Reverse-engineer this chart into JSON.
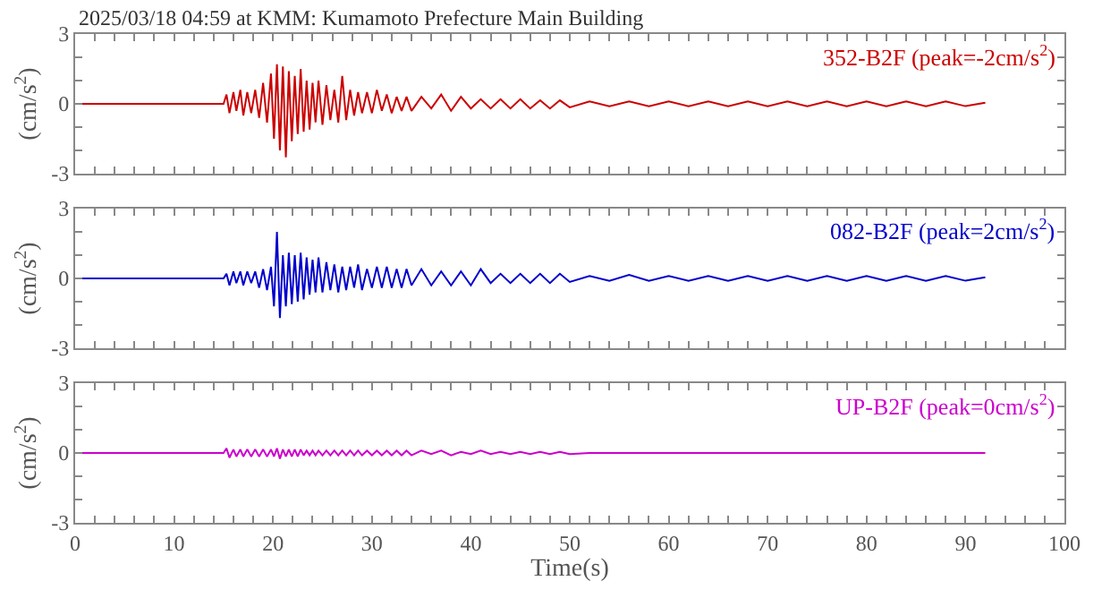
{
  "chart_data": [
    {
      "type": "line",
      "title": "2025/03/18 04:59 at KMM: Kumamoto Prefecture Main Building",
      "ylabel": "(cm/s$^{2}$)",
      "annotations": [
        "352-B2F (peak=-2cm/s$^{2}$)"
      ],
      "tick_labels": "y",
      "x": [
        0,
        15,
        15.3,
        15.6,
        16,
        16.3,
        16.7,
        17,
        17.4,
        17.8,
        18.2,
        18.6,
        19,
        19.4,
        19.8,
        20.1,
        20.4,
        20.7,
        21,
        21.3,
        21.6,
        21.9,
        22.2,
        22.5,
        22.8,
        23.1,
        23.4,
        23.7,
        24,
        24.3,
        24.6,
        25,
        25.4,
        25.8,
        26.2,
        26.6,
        27,
        27.4,
        27.8,
        28.2,
        28.6,
        29,
        29.5,
        30,
        30.5,
        31,
        31.5,
        32,
        32.5,
        33,
        33.5,
        34,
        35,
        36,
        37,
        38,
        39,
        40,
        41,
        42,
        43,
        44,
        45,
        46,
        47,
        48,
        49,
        50,
        52,
        54,
        56,
        58,
        60,
        62,
        64,
        66,
        68,
        70,
        72,
        74,
        76,
        78,
        80,
        82,
        84,
        86,
        88,
        90,
        92
      ],
      "series": [
        {
          "color": "#cc0000",
          "values": [
            0,
            0,
            0.4,
            -0.4,
            0.5,
            -0.3,
            0.6,
            -0.5,
            0.5,
            -0.4,
            0.6,
            -0.6,
            0.9,
            -0.8,
            1.3,
            -1.5,
            1.7,
            -2.0,
            1.6,
            -2.3,
            1.4,
            -1.6,
            1.2,
            -1.3,
            1.5,
            -1.2,
            1.0,
            -1.1,
            0.9,
            -0.8,
            1.0,
            -0.9,
            0.8,
            -0.7,
            0.6,
            -0.8,
            1.2,
            -0.7,
            0.6,
            -0.5,
            0.5,
            -0.4,
            0.5,
            -0.4,
            0.6,
            -0.3,
            0.4,
            -0.4,
            0.3,
            -0.3,
            0.3,
            -0.3,
            0.3,
            -0.2,
            0.4,
            -0.3,
            0.3,
            -0.2,
            0.2,
            -0.2,
            0.2,
            -0.2,
            0.2,
            -0.2,
            0.15,
            -0.2,
            0.15,
            -0.15,
            0.1,
            -0.1,
            0.1,
            -0.1,
            0.1,
            -0.1,
            0.1,
            -0.1,
            0.1,
            -0.1,
            0.1,
            -0.1,
            0.1,
            -0.1,
            0.1,
            -0.1,
            0.1,
            -0.1,
            0.1,
            -0.1,
            0.05
          ]
        }
      ],
      "xlim": [
        0,
        100
      ],
      "xticks": [
        0,
        {
          "value": 2,
          "label": null
        },
        {
          "value": 4,
          "label": null
        },
        {
          "value": 6,
          "label": null
        },
        {
          "value": 8,
          "label": null
        },
        10,
        {
          "value": 12,
          "label": null
        },
        {
          "value": 14,
          "label": null
        },
        {
          "value": 16,
          "label": null
        },
        {
          "value": 18,
          "label": null
        },
        20,
        {
          "value": 22,
          "label": null
        },
        {
          "value": 24,
          "label": null
        },
        {
          "value": 26,
          "label": null
        },
        {
          "value": 28,
          "label": null
        },
        30,
        {
          "value": 32,
          "label": null
        },
        {
          "value": 34,
          "label": null
        },
        {
          "value": 36,
          "label": null
        },
        {
          "value": 38,
          "label": null
        },
        40,
        {
          "value": 42,
          "label": null
        },
        {
          "value": 44,
          "label": null
        },
        {
          "value": 46,
          "label": null
        },
        {
          "value": 48,
          "label": null
        },
        50,
        {
          "value": 52,
          "label": null
        },
        {
          "value": 54,
          "label": null
        },
        {
          "value": 56,
          "label": null
        },
        {
          "value": 58,
          "label": null
        },
        60,
        {
          "value": 62,
          "label": null
        },
        {
          "value": 64,
          "label": null
        },
        {
          "value": 66,
          "label": null
        },
        {
          "value": 68,
          "label": null
        },
        70,
        {
          "value": 72,
          "label": null
        },
        {
          "value": 74,
          "label": null
        },
        {
          "value": 76,
          "label": null
        },
        {
          "value": 78,
          "label": null
        },
        80,
        {
          "value": 82,
          "label": null
        },
        {
          "value": 84,
          "label": null
        },
        {
          "value": 86,
          "label": null
        },
        {
          "value": 88,
          "label": null
        },
        90,
        {
          "value": 92,
          "label": null
        },
        {
          "value": 94,
          "label": null
        },
        {
          "value": 96,
          "label": null
        },
        {
          "value": 98,
          "label": null
        },
        100
      ],
      "ylim": [
        -3,
        3
      ],
      "yticks": [
        -3,
        {
          "value": -2,
          "label": null
        },
        {
          "value": -1,
          "label": null
        },
        0,
        {
          "value": 1,
          "label": null
        },
        {
          "value": 2,
          "label": null
        },
        3
      ]
    },
    {
      "type": "line",
      "ylabel": "(cm/s$^{2}$)",
      "annotations": [
        "082-B2F (peak=2cm/s$^{2}$)"
      ],
      "tick_labels": "y",
      "x": [
        0,
        15,
        15.3,
        15.6,
        16,
        16.3,
        16.7,
        17,
        17.4,
        17.8,
        18.2,
        18.6,
        19,
        19.4,
        19.8,
        20.1,
        20.4,
        20.7,
        21,
        21.3,
        21.6,
        21.9,
        22.2,
        22.5,
        22.8,
        23.1,
        23.4,
        23.7,
        24,
        24.3,
        24.6,
        25,
        25.4,
        25.8,
        26.2,
        26.6,
        27,
        27.4,
        27.8,
        28.2,
        28.6,
        29,
        29.5,
        30,
        30.5,
        31,
        31.5,
        32,
        32.5,
        33,
        33.5,
        34,
        35,
        36,
        37,
        38,
        39,
        40,
        41,
        42,
        43,
        44,
        45,
        46,
        47,
        48,
        49,
        50,
        52,
        54,
        56,
        58,
        60,
        62,
        64,
        66,
        68,
        70,
        72,
        74,
        76,
        78,
        80,
        82,
        84,
        86,
        88,
        90,
        92
      ],
      "series": [
        {
          "color": "#0000cc",
          "values": [
            0,
            0,
            0.2,
            -0.3,
            0.3,
            -0.2,
            0.3,
            -0.3,
            0.3,
            -0.2,
            0.3,
            -0.4,
            0.4,
            -0.5,
            0.5,
            -1.2,
            2.0,
            -1.7,
            1.0,
            -1.2,
            1.1,
            -1.1,
            1.0,
            -1.0,
            1.1,
            -0.9,
            0.9,
            -0.7,
            0.8,
            -0.6,
            0.9,
            -0.6,
            0.7,
            -0.5,
            0.6,
            -0.6,
            0.5,
            -0.5,
            0.5,
            -0.4,
            0.6,
            -0.5,
            0.4,
            -0.4,
            0.5,
            -0.4,
            0.5,
            -0.4,
            0.4,
            -0.4,
            0.4,
            -0.3,
            0.4,
            -0.3,
            0.3,
            -0.3,
            0.3,
            -0.3,
            0.4,
            -0.2,
            0.2,
            -0.2,
            0.2,
            -0.2,
            0.2,
            -0.2,
            0.2,
            -0.15,
            0.1,
            -0.1,
            0.15,
            -0.1,
            0.1,
            -0.1,
            0.1,
            -0.1,
            0.1,
            -0.1,
            0.1,
            -0.1,
            0.1,
            -0.1,
            0.1,
            -0.1,
            0.1,
            -0.1,
            0.1,
            -0.1,
            0.05
          ]
        }
      ],
      "xlim": [
        0,
        100
      ],
      "xticks": [
        0,
        {
          "value": 2,
          "label": null
        },
        {
          "value": 4,
          "label": null
        },
        {
          "value": 6,
          "label": null
        },
        {
          "value": 8,
          "label": null
        },
        10,
        {
          "value": 12,
          "label": null
        },
        {
          "value": 14,
          "label": null
        },
        {
          "value": 16,
          "label": null
        },
        {
          "value": 18,
          "label": null
        },
        20,
        {
          "value": 22,
          "label": null
        },
        {
          "value": 24,
          "label": null
        },
        {
          "value": 26,
          "label": null
        },
        {
          "value": 28,
          "label": null
        },
        30,
        {
          "value": 32,
          "label": null
        },
        {
          "value": 34,
          "label": null
        },
        {
          "value": 36,
          "label": null
        },
        {
          "value": 38,
          "label": null
        },
        40,
        {
          "value": 42,
          "label": null
        },
        {
          "value": 44,
          "label": null
        },
        {
          "value": 46,
          "label": null
        },
        {
          "value": 48,
          "label": null
        },
        50,
        {
          "value": 52,
          "label": null
        },
        {
          "value": 54,
          "label": null
        },
        {
          "value": 56,
          "label": null
        },
        {
          "value": 58,
          "label": null
        },
        60,
        {
          "value": 62,
          "label": null
        },
        {
          "value": 64,
          "label": null
        },
        {
          "value": 66,
          "label": null
        },
        {
          "value": 68,
          "label": null
        },
        70,
        {
          "value": 72,
          "label": null
        },
        {
          "value": 74,
          "label": null
        },
        {
          "value": 76,
          "label": null
        },
        {
          "value": 78,
          "label": null
        },
        80,
        {
          "value": 82,
          "label": null
        },
        {
          "value": 84,
          "label": null
        },
        {
          "value": 86,
          "label": null
        },
        {
          "value": 88,
          "label": null
        },
        90,
        {
          "value": 92,
          "label": null
        },
        {
          "value": 94,
          "label": null
        },
        {
          "value": 96,
          "label": null
        },
        {
          "value": 98,
          "label": null
        },
        100
      ],
      "ylim": [
        -3,
        3
      ],
      "yticks": [
        -3,
        {
          "value": -2,
          "label": null
        },
        {
          "value": -1,
          "label": null
        },
        0,
        {
          "value": 1,
          "label": null
        },
        {
          "value": 2,
          "label": null
        },
        3
      ]
    },
    {
      "type": "line",
      "ylabel": "(cm/s$^{2}$)",
      "xlabel": "Time(s)",
      "annotations": [
        "UP-B2F (peak=0cm/s$^{2}$)"
      ],
      "x": [
        0,
        15,
        15.3,
        15.6,
        16,
        16.3,
        16.7,
        17,
        17.4,
        17.8,
        18.2,
        18.6,
        19,
        19.4,
        19.8,
        20.1,
        20.4,
        20.7,
        21,
        21.3,
        21.6,
        21.9,
        22.2,
        22.5,
        22.8,
        23.1,
        23.4,
        23.7,
        24,
        24.3,
        24.6,
        25,
        25.4,
        25.8,
        26.2,
        26.6,
        27,
        27.4,
        27.8,
        28.2,
        28.6,
        29,
        29.5,
        30,
        30.5,
        31,
        31.5,
        32,
        32.5,
        33,
        33.5,
        34,
        35,
        36,
        37,
        38,
        39,
        40,
        41,
        42,
        43,
        44,
        45,
        46,
        47,
        48,
        49,
        50,
        52,
        54,
        56,
        58,
        60,
        62,
        64,
        66,
        68,
        70,
        72,
        74,
        76,
        78,
        80,
        82,
        84,
        86,
        88,
        90,
        92
      ],
      "series": [
        {
          "color": "#cc00cc",
          "values": [
            0,
            0,
            0.2,
            -0.2,
            0.15,
            -0.15,
            0.15,
            -0.15,
            0.15,
            -0.15,
            0.15,
            -0.15,
            0.15,
            -0.15,
            0.15,
            -0.15,
            0.2,
            -0.25,
            0.15,
            -0.15,
            0.15,
            -0.15,
            0.15,
            -0.15,
            0.15,
            -0.1,
            0.1,
            -0.1,
            0.1,
            -0.1,
            0.1,
            -0.1,
            0.1,
            -0.1,
            0.1,
            -0.1,
            0.1,
            -0.1,
            0.1,
            -0.1,
            0.1,
            -0.1,
            0.1,
            -0.1,
            0.1,
            -0.1,
            0.1,
            -0.1,
            0.1,
            -0.1,
            0.1,
            -0.1,
            0.1,
            -0.05,
            0.1,
            -0.1,
            0.05,
            -0.05,
            0.1,
            -0.05,
            0.05,
            -0.05,
            0.05,
            -0.05,
            0.05,
            -0.05,
            0.05,
            -0.05,
            0,
            0,
            0,
            0,
            0,
            0,
            0,
            0,
            0,
            0,
            0,
            0,
            0,
            0,
            0,
            0,
            0,
            0,
            0,
            0,
            0
          ]
        }
      ],
      "xlim": [
        0,
        100
      ],
      "xticks": [
        0,
        {
          "value": 2,
          "label": null
        },
        {
          "value": 4,
          "label": null
        },
        {
          "value": 6,
          "label": null
        },
        {
          "value": 8,
          "label": null
        },
        10,
        {
          "value": 12,
          "label": null
        },
        {
          "value": 14,
          "label": null
        },
        {
          "value": 16,
          "label": null
        },
        {
          "value": 18,
          "label": null
        },
        20,
        {
          "value": 22,
          "label": null
        },
        {
          "value": 24,
          "label": null
        },
        {
          "value": 26,
          "label": null
        },
        {
          "value": 28,
          "label": null
        },
        30,
        {
          "value": 32,
          "label": null
        },
        {
          "value": 34,
          "label": null
        },
        {
          "value": 36,
          "label": null
        },
        {
          "value": 38,
          "label": null
        },
        40,
        {
          "value": 42,
          "label": null
        },
        {
          "value": 44,
          "label": null
        },
        {
          "value": 46,
          "label": null
        },
        {
          "value": 48,
          "label": null
        },
        50,
        {
          "value": 52,
          "label": null
        },
        {
          "value": 54,
          "label": null
        },
        {
          "value": 56,
          "label": null
        },
        {
          "value": 58,
          "label": null
        },
        60,
        {
          "value": 62,
          "label": null
        },
        {
          "value": 64,
          "label": null
        },
        {
          "value": 66,
          "label": null
        },
        {
          "value": 68,
          "label": null
        },
        70,
        {
          "value": 72,
          "label": null
        },
        {
          "value": 74,
          "label": null
        },
        {
          "value": 76,
          "label": null
        },
        {
          "value": 78,
          "label": null
        },
        80,
        {
          "value": 82,
          "label": null
        },
        {
          "value": 84,
          "label": null
        },
        {
          "value": 86,
          "label": null
        },
        {
          "value": 88,
          "label": null
        },
        90,
        {
          "value": 92,
          "label": null
        },
        {
          "value": 94,
          "label": null
        },
        {
          "value": 96,
          "label": null
        },
        {
          "value": 98,
          "label": null
        },
        100
      ],
      "ylim": [
        -3,
        3
      ],
      "yticks": [
        -3,
        {
          "value": -2,
          "label": null
        },
        {
          "value": -1,
          "label": null
        },
        0,
        {
          "value": 1,
          "label": null
        },
        {
          "value": 2,
          "label": null
        },
        3
      ]
    }
  ]
}
